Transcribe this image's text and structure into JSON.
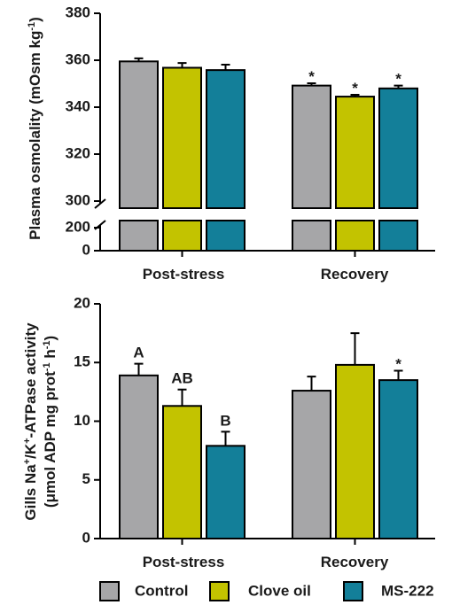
{
  "colors": {
    "Control": "#a6a6a8",
    "Clove oil": "#c3c300",
    "MS-222": "#137f99"
  },
  "legend": [
    "Control",
    "Clove oil",
    "MS-222"
  ],
  "chart_data": [
    {
      "type": "bar",
      "ylabel": "Plasma osmolality (mOsm kg⁻¹)",
      "ylabel_parts": [
        "Plasma osmolality (mOsm kg",
        "-1",
        ")"
      ],
      "categories": [
        "Post-stress",
        "Recovery"
      ],
      "y_axis_break": {
        "lower": [
          0,
          200
        ],
        "upper": [
          300,
          380
        ]
      },
      "yticks": [
        0,
        200,
        300,
        320,
        340,
        360,
        380
      ],
      "series": [
        {
          "name": "Control",
          "values": [
            359.5,
            349.2
          ],
          "errors": [
            1.3,
            1.0
          ],
          "annotations": [
            "",
            "*"
          ]
        },
        {
          "name": "Clove oil",
          "values": [
            356.8,
            344.5
          ],
          "errors": [
            2.0,
            0.8
          ],
          "annotations": [
            "",
            "*"
          ]
        },
        {
          "name": "MS-222",
          "values": [
            355.8,
            348.0
          ],
          "errors": [
            2.3,
            1.2
          ],
          "annotations": [
            "",
            "*"
          ]
        }
      ]
    },
    {
      "type": "bar",
      "ylabel_line1_parts": [
        "Gills Na",
        "+",
        "/K",
        "+",
        "-ATPase activity"
      ],
      "ylabel_line2_parts": [
        "(μmol ADP mg prot",
        "-1",
        " h",
        "-1",
        ")"
      ],
      "categories": [
        "Post-stress",
        "Recovery"
      ],
      "ylim": [
        0,
        20
      ],
      "yticks": [
        0,
        5,
        10,
        15,
        20
      ],
      "series": [
        {
          "name": "Control",
          "values": [
            13.9,
            12.6
          ],
          "errors": [
            1.0,
            1.2
          ],
          "annotations": [
            "A",
            ""
          ]
        },
        {
          "name": "Clove oil",
          "values": [
            11.3,
            14.8
          ],
          "errors": [
            1.4,
            2.7
          ],
          "annotations": [
            "AB",
            ""
          ]
        },
        {
          "name": "MS-222",
          "values": [
            7.9,
            13.5
          ],
          "errors": [
            1.2,
            0.8
          ],
          "annotations": [
            "B",
            "*"
          ]
        }
      ]
    }
  ]
}
